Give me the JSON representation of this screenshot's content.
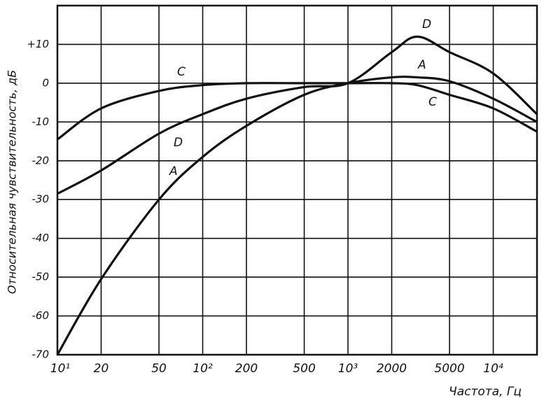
{
  "chart_data": {
    "type": "line",
    "y_label": "Относительная чувствительность, дБ",
    "x_label": "Частота, Гц",
    "log_x": true,
    "grid": true,
    "x": [
      10,
      20,
      50,
      100,
      200,
      500,
      1000,
      2000,
      3000,
      5000,
      10000,
      20000
    ],
    "series": [
      {
        "name": "A",
        "color": "#111111",
        "values": [
          -70,
          -50.5,
          -30,
          -19,
          -11,
          -3,
          0,
          1.5,
          1.5,
          0.5,
          -4,
          -10
        ]
      },
      {
        "name": "C",
        "color": "#111111",
        "values": [
          -14.5,
          -6.5,
          -2,
          -0.5,
          0,
          0,
          0,
          0,
          -0.5,
          -3,
          -6.5,
          -12.5
        ]
      },
      {
        "name": "D",
        "color": "#111111",
        "values": [
          -28.5,
          -22.5,
          -13,
          -8,
          -4,
          -1,
          0,
          8,
          12,
          8,
          2.5,
          -8
        ]
      }
    ],
    "xlim": [
      10,
      20000
    ],
    "ylim": [
      -70,
      20
    ],
    "xticks": [
      {
        "value": 10,
        "label": "10¹"
      },
      20,
      50,
      {
        "value": 100,
        "label": "10²"
      },
      200,
      500,
      {
        "value": 1000,
        "label": "10³"
      },
      2000,
      5000,
      {
        "value": 10000,
        "label": "10⁴"
      }
    ],
    "yticks": [
      -70,
      -60,
      -50,
      -40,
      -30,
      -20,
      -10,
      0,
      {
        "value": 10,
        "label": "+10"
      }
    ]
  }
}
